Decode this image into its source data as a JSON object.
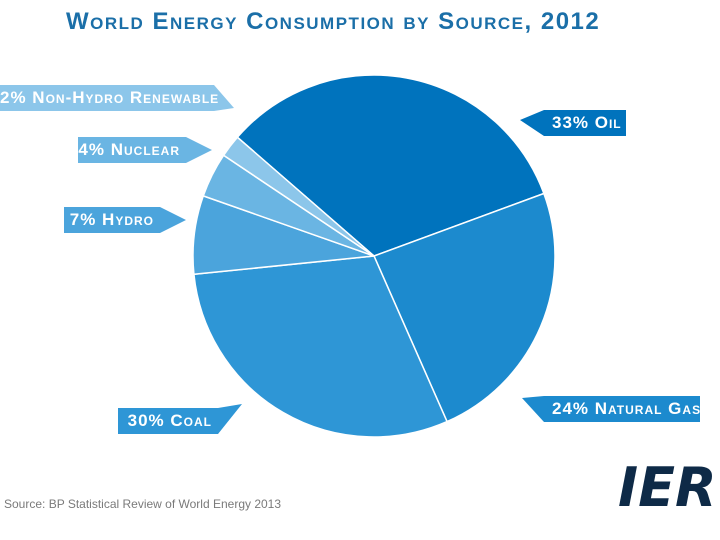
{
  "chart_data": {
    "type": "pie",
    "title": "World Energy Consumption by Source, 2012",
    "slices": [
      {
        "name": "Oil",
        "value": 33,
        "label": "33% Oil",
        "color": "#0073bd"
      },
      {
        "name": "Natural Gas",
        "value": 24,
        "label": "24% Natural Gas",
        "color": "#1c8ace"
      },
      {
        "name": "Coal",
        "value": 30,
        "label": "30% Coal",
        "color": "#2e96d6"
      },
      {
        "name": "Hydro",
        "value": 7,
        "label": "7% Hydro",
        "color": "#4ba4dc"
      },
      {
        "name": "Nuclear",
        "value": 4,
        "label": "4% Nuclear",
        "color": "#6ab5e3"
      },
      {
        "name": "Non-Hydro Renewable",
        "value": 2,
        "label": "2% Non-Hydro Renewable",
        "color": "#8cc6ea"
      }
    ]
  },
  "source": "Source: BP Statistical Review of World Energy 2013",
  "logo": {
    "text": "IER",
    "color": "#0e2a47"
  }
}
